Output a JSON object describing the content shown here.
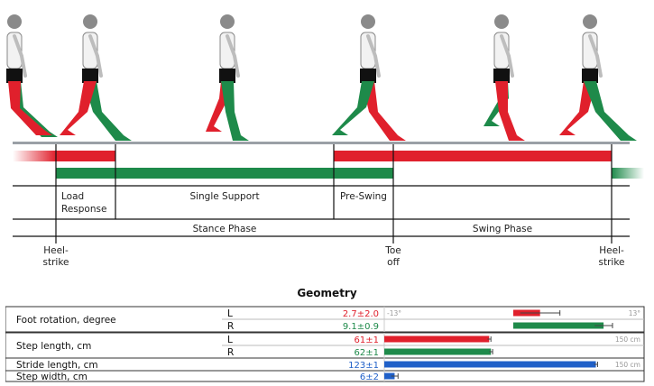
{
  "colors": {
    "left": "#e0202c",
    "right": "#1e8a4a",
    "blue": "#2060c8",
    "track": "#9aa0a6"
  },
  "phases": {
    "load_response_1": "Load",
    "load_response_2": "Response",
    "single_support": "Single Support",
    "pre_swing": "Pre-Swing",
    "stance_phase": "Stance Phase",
    "swing_phase": "Swing Phase"
  },
  "events": {
    "heel_strike_1a": "Heel-",
    "heel_strike_1b": "strike",
    "toe_off_a": "Toe",
    "toe_off_b": "off",
    "heel_strike_2a": "Heel-",
    "heel_strike_2b": "strike"
  },
  "geometry": {
    "title": "Geometry",
    "rows": [
      {
        "label": "Foot rotation, degree",
        "side": "L",
        "value_text": "2.7±2.0",
        "color": "#e0202c",
        "bar_value": 2.7,
        "err": 2.0,
        "min_text": "-13°",
        "max_text": "13°",
        "min": -13,
        "max": 13
      },
      {
        "label": "",
        "side": "R",
        "value_text": "9.1±0.9",
        "color": "#1e8a4a",
        "bar_value": 9.1,
        "err": 0.9,
        "min_text": "",
        "max_text": "",
        "min": -13,
        "max": 13
      },
      {
        "label": "Step length, cm",
        "side": "L",
        "value_text": "61±1",
        "color": "#e0202c",
        "bar_value": 61,
        "err": 1,
        "min_text": "",
        "max_text": "150 cm",
        "min": 0,
        "max": 150
      },
      {
        "label": "",
        "side": "R",
        "value_text": "62±1",
        "color": "#1e8a4a",
        "bar_value": 62,
        "err": 1,
        "min_text": "",
        "max_text": "",
        "min": 0,
        "max": 150
      },
      {
        "label": "Stride length, cm",
        "side": "",
        "value_text": "123±1",
        "color": "#2060c8",
        "bar_value": 123,
        "err": 1,
        "min_text": "",
        "max_text": "150 cm",
        "min": 0,
        "max": 150
      },
      {
        "label": "Step width, cm",
        "side": "",
        "value_text": "6±2",
        "color": "#2060c8",
        "bar_value": 6,
        "err": 2,
        "min_text": "",
        "max_text": "",
        "min": 0,
        "max": 150
      }
    ]
  }
}
